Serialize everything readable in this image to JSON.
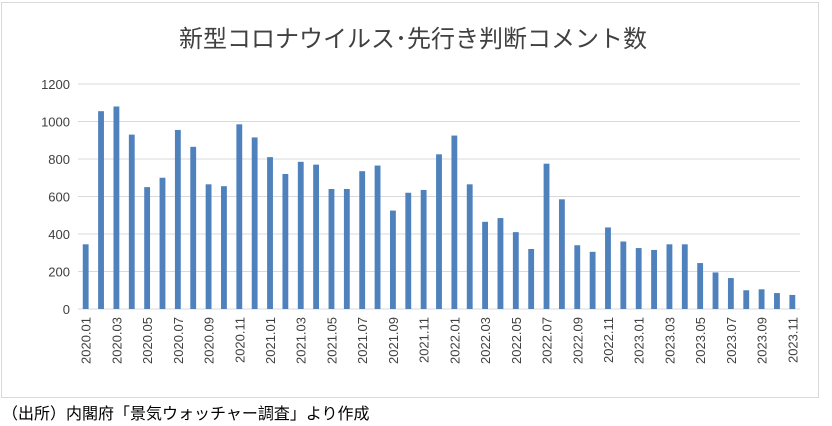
{
  "chart_data": {
    "type": "bar",
    "title": "新型コロナウイルス･先行き判断コメント数",
    "xlabel": "",
    "ylabel": "",
    "ylim": [
      0,
      1200
    ],
    "yticks": [
      0,
      200,
      400,
      600,
      800,
      1000,
      1200
    ],
    "grid": true,
    "legend": "none",
    "bar_color": "#4f81bd",
    "grid_color": "#d9d9d9",
    "categories": [
      "2020.01",
      "2020.02",
      "2020.03",
      "2020.04",
      "2020.05",
      "2020.06",
      "2020.07",
      "2020.08",
      "2020.09",
      "2020.10",
      "2020.11",
      "2020.12",
      "2021.01",
      "2021.02",
      "2021.03",
      "2021.04",
      "2021.05",
      "2021.06",
      "2021.07",
      "2021.08",
      "2021.09",
      "2021.10",
      "2021.11",
      "2021.12",
      "2022.01",
      "2022.02",
      "2022.03",
      "2022.04",
      "2022.05",
      "2022.06",
      "2022.07",
      "2022.08",
      "2022.09",
      "2022.10",
      "2022.11",
      "2022.12",
      "2023.01",
      "2023.02",
      "2023.03",
      "2023.04",
      "2023.05",
      "2023.06",
      "2023.07",
      "2023.08",
      "2023.09",
      "2023.10",
      "2023.11"
    ],
    "tick_labels": [
      "2020.01",
      "2020.03",
      "2020.05",
      "2020.07",
      "2020.09",
      "2020.11",
      "2021.01",
      "2021.03",
      "2021.05",
      "2021.07",
      "2021.09",
      "2021.11",
      "2022.01",
      "2022.03",
      "2022.05",
      "2022.07",
      "2022.09",
      "2022.11",
      "2023.01",
      "2023.03",
      "2023.05",
      "2023.07",
      "2023.09",
      "2023.11"
    ],
    "values": [
      345,
      1055,
      1080,
      930,
      650,
      700,
      955,
      865,
      665,
      655,
      985,
      915,
      810,
      720,
      785,
      770,
      640,
      640,
      735,
      765,
      525,
      620,
      635,
      825,
      925,
      665,
      465,
      485,
      410,
      320,
      775,
      585,
      340,
      305,
      435,
      360,
      325,
      315,
      345,
      345,
      245,
      195,
      165,
      100,
      105,
      85,
      75
    ]
  },
  "source_note": "（出所）内閣府「景気ウォッチャー調査」より作成"
}
